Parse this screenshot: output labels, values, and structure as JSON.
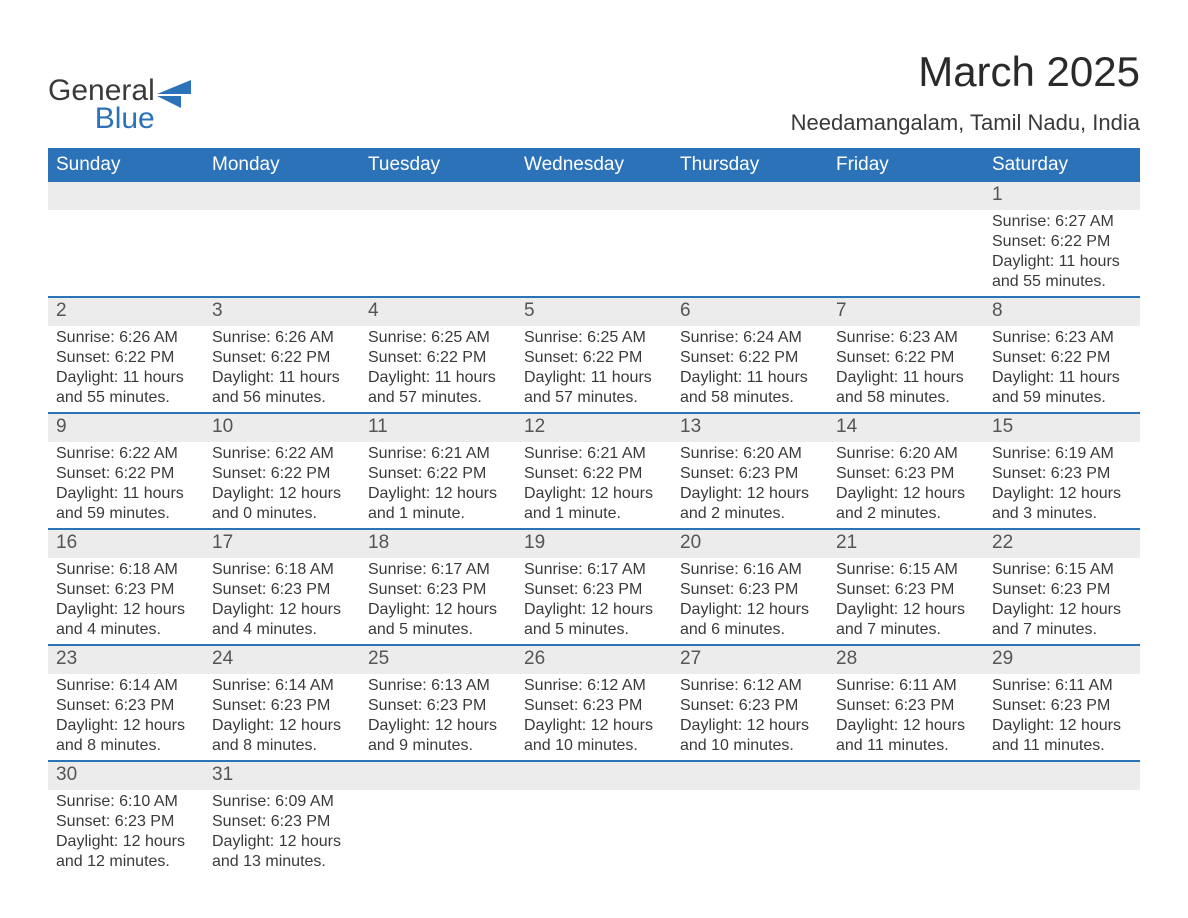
{
  "brand": {
    "name1": "General",
    "name2": "Blue"
  },
  "title": "March 2025",
  "subtitle": "Needamangalam, Tamil Nadu, India",
  "colors": {
    "header_bg": "#2b72b9",
    "header_text": "#ffffff",
    "daynum_bg": "#ececec",
    "row_divider": "#2b72b9",
    "body_text": "#3a3a3a",
    "daynum_text": "#555555",
    "page_bg": "#ffffff"
  },
  "typography": {
    "title_fontsize": 42,
    "subtitle_fontsize": 22,
    "header_fontsize": 19,
    "daynum_fontsize": 19,
    "detail_fontsize": 16
  },
  "day_headers": [
    "Sunday",
    "Monday",
    "Tuesday",
    "Wednesday",
    "Thursday",
    "Friday",
    "Saturday"
  ],
  "weeks": [
    [
      null,
      null,
      null,
      null,
      null,
      null,
      {
        "n": "1",
        "sr": "Sunrise: 6:27 AM",
        "ss": "Sunset: 6:22 PM",
        "dl1": "Daylight: 11 hours",
        "dl2": "and 55 minutes."
      }
    ],
    [
      {
        "n": "2",
        "sr": "Sunrise: 6:26 AM",
        "ss": "Sunset: 6:22 PM",
        "dl1": "Daylight: 11 hours",
        "dl2": "and 55 minutes."
      },
      {
        "n": "3",
        "sr": "Sunrise: 6:26 AM",
        "ss": "Sunset: 6:22 PM",
        "dl1": "Daylight: 11 hours",
        "dl2": "and 56 minutes."
      },
      {
        "n": "4",
        "sr": "Sunrise: 6:25 AM",
        "ss": "Sunset: 6:22 PM",
        "dl1": "Daylight: 11 hours",
        "dl2": "and 57 minutes."
      },
      {
        "n": "5",
        "sr": "Sunrise: 6:25 AM",
        "ss": "Sunset: 6:22 PM",
        "dl1": "Daylight: 11 hours",
        "dl2": "and 57 minutes."
      },
      {
        "n": "6",
        "sr": "Sunrise: 6:24 AM",
        "ss": "Sunset: 6:22 PM",
        "dl1": "Daylight: 11 hours",
        "dl2": "and 58 minutes."
      },
      {
        "n": "7",
        "sr": "Sunrise: 6:23 AM",
        "ss": "Sunset: 6:22 PM",
        "dl1": "Daylight: 11 hours",
        "dl2": "and 58 minutes."
      },
      {
        "n": "8",
        "sr": "Sunrise: 6:23 AM",
        "ss": "Sunset: 6:22 PM",
        "dl1": "Daylight: 11 hours",
        "dl2": "and 59 minutes."
      }
    ],
    [
      {
        "n": "9",
        "sr": "Sunrise: 6:22 AM",
        "ss": "Sunset: 6:22 PM",
        "dl1": "Daylight: 11 hours",
        "dl2": "and 59 minutes."
      },
      {
        "n": "10",
        "sr": "Sunrise: 6:22 AM",
        "ss": "Sunset: 6:22 PM",
        "dl1": "Daylight: 12 hours",
        "dl2": "and 0 minutes."
      },
      {
        "n": "11",
        "sr": "Sunrise: 6:21 AM",
        "ss": "Sunset: 6:22 PM",
        "dl1": "Daylight: 12 hours",
        "dl2": "and 1 minute."
      },
      {
        "n": "12",
        "sr": "Sunrise: 6:21 AM",
        "ss": "Sunset: 6:22 PM",
        "dl1": "Daylight: 12 hours",
        "dl2": "and 1 minute."
      },
      {
        "n": "13",
        "sr": "Sunrise: 6:20 AM",
        "ss": "Sunset: 6:23 PM",
        "dl1": "Daylight: 12 hours",
        "dl2": "and 2 minutes."
      },
      {
        "n": "14",
        "sr": "Sunrise: 6:20 AM",
        "ss": "Sunset: 6:23 PM",
        "dl1": "Daylight: 12 hours",
        "dl2": "and 2 minutes."
      },
      {
        "n": "15",
        "sr": "Sunrise: 6:19 AM",
        "ss": "Sunset: 6:23 PM",
        "dl1": "Daylight: 12 hours",
        "dl2": "and 3 minutes."
      }
    ],
    [
      {
        "n": "16",
        "sr": "Sunrise: 6:18 AM",
        "ss": "Sunset: 6:23 PM",
        "dl1": "Daylight: 12 hours",
        "dl2": "and 4 minutes."
      },
      {
        "n": "17",
        "sr": "Sunrise: 6:18 AM",
        "ss": "Sunset: 6:23 PM",
        "dl1": "Daylight: 12 hours",
        "dl2": "and 4 minutes."
      },
      {
        "n": "18",
        "sr": "Sunrise: 6:17 AM",
        "ss": "Sunset: 6:23 PM",
        "dl1": "Daylight: 12 hours",
        "dl2": "and 5 minutes."
      },
      {
        "n": "19",
        "sr": "Sunrise: 6:17 AM",
        "ss": "Sunset: 6:23 PM",
        "dl1": "Daylight: 12 hours",
        "dl2": "and 5 minutes."
      },
      {
        "n": "20",
        "sr": "Sunrise: 6:16 AM",
        "ss": "Sunset: 6:23 PM",
        "dl1": "Daylight: 12 hours",
        "dl2": "and 6 minutes."
      },
      {
        "n": "21",
        "sr": "Sunrise: 6:15 AM",
        "ss": "Sunset: 6:23 PM",
        "dl1": "Daylight: 12 hours",
        "dl2": "and 7 minutes."
      },
      {
        "n": "22",
        "sr": "Sunrise: 6:15 AM",
        "ss": "Sunset: 6:23 PM",
        "dl1": "Daylight: 12 hours",
        "dl2": "and 7 minutes."
      }
    ],
    [
      {
        "n": "23",
        "sr": "Sunrise: 6:14 AM",
        "ss": "Sunset: 6:23 PM",
        "dl1": "Daylight: 12 hours",
        "dl2": "and 8 minutes."
      },
      {
        "n": "24",
        "sr": "Sunrise: 6:14 AM",
        "ss": "Sunset: 6:23 PM",
        "dl1": "Daylight: 12 hours",
        "dl2": "and 8 minutes."
      },
      {
        "n": "25",
        "sr": "Sunrise: 6:13 AM",
        "ss": "Sunset: 6:23 PM",
        "dl1": "Daylight: 12 hours",
        "dl2": "and 9 minutes."
      },
      {
        "n": "26",
        "sr": "Sunrise: 6:12 AM",
        "ss": "Sunset: 6:23 PM",
        "dl1": "Daylight: 12 hours",
        "dl2": "and 10 minutes."
      },
      {
        "n": "27",
        "sr": "Sunrise: 6:12 AM",
        "ss": "Sunset: 6:23 PM",
        "dl1": "Daylight: 12 hours",
        "dl2": "and 10 minutes."
      },
      {
        "n": "28",
        "sr": "Sunrise: 6:11 AM",
        "ss": "Sunset: 6:23 PM",
        "dl1": "Daylight: 12 hours",
        "dl2": "and 11 minutes."
      },
      {
        "n": "29",
        "sr": "Sunrise: 6:11 AM",
        "ss": "Sunset: 6:23 PM",
        "dl1": "Daylight: 12 hours",
        "dl2": "and 11 minutes."
      }
    ],
    [
      {
        "n": "30",
        "sr": "Sunrise: 6:10 AM",
        "ss": "Sunset: 6:23 PM",
        "dl1": "Daylight: 12 hours",
        "dl2": "and 12 minutes."
      },
      {
        "n": "31",
        "sr": "Sunrise: 6:09 AM",
        "ss": "Sunset: 6:23 PM",
        "dl1": "Daylight: 12 hours",
        "dl2": "and 13 minutes."
      },
      null,
      null,
      null,
      null,
      null
    ]
  ]
}
